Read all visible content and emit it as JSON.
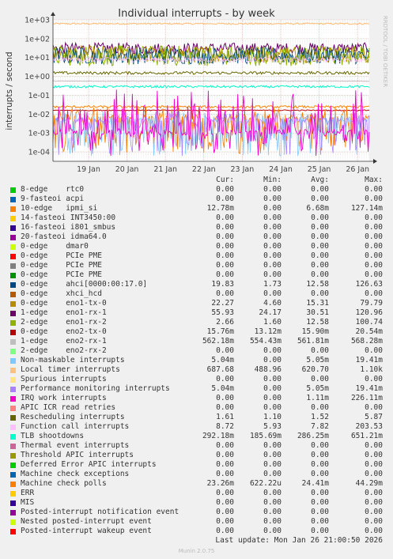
{
  "title": "Individual interrupts - by week",
  "watermark": "RRDTOOL / TOBI OETIKER",
  "footer": {
    "last_update": "Last update: Mon Jan 26 21:00:50 2026",
    "version": "Munin 2.0.75"
  },
  "legend_headers": {
    "cur": "Cur:",
    "min": "Min:",
    "avg": "Avg:",
    "max": "Max:"
  },
  "chart_data": {
    "type": "line",
    "title": "Individual interrupts - by week",
    "ylabel": "interrupts / second",
    "yscale": "log",
    "ylim": [
      5e-05,
      2000
    ],
    "y_ticks": [
      "1e+03",
      "1e+02",
      "1e+01",
      "1e+00",
      "1e-01",
      "1e-02",
      "1e-03",
      "1e-04"
    ],
    "x_ticks": [
      "19 Jan",
      "20 Jan",
      "21 Jan",
      "22 Jan",
      "23 Jan",
      "24 Jan",
      "25 Jan",
      "26 Jan"
    ],
    "grid": true,
    "legend_placement": "below",
    "series": [
      {
        "name": "8-edge",
        "device": "rtc0",
        "color": "#00cc00",
        "cur": "0.00",
        "min": "0.00",
        "avg": "0.00",
        "max": "0.00"
      },
      {
        "name": "9-fasteoi",
        "device": "acpi",
        "color": "#0066b3",
        "cur": "0.00",
        "min": "0.00",
        "avg": "0.00",
        "max": "0.00"
      },
      {
        "name": "10-edge",
        "device": "ipmi_si",
        "color": "#ff8000",
        "cur": "12.78m",
        "min": "0.00",
        "avg": "6.68m",
        "max": "127.14m"
      },
      {
        "name": "14-fasteoi",
        "device": "INT3450:00",
        "color": "#ffcc00",
        "cur": "0.00",
        "min": "0.00",
        "avg": "0.00",
        "max": "0.00"
      },
      {
        "name": "16-fasteoi",
        "device": "i801_smbus",
        "color": "#330099",
        "cur": "0.00",
        "min": "0.00",
        "avg": "0.00",
        "max": "0.00"
      },
      {
        "name": "20-fasteoi",
        "device": "idma64.0",
        "color": "#990099",
        "cur": "0.00",
        "min": "0.00",
        "avg": "0.00",
        "max": "0.00"
      },
      {
        "name": "0-edge",
        "device": "dmar0",
        "color": "#ccff00",
        "cur": "0.00",
        "min": "0.00",
        "avg": "0.00",
        "max": "0.00"
      },
      {
        "name": "0-edge",
        "device": "PCIe PME",
        "color": "#ff0000",
        "cur": "0.00",
        "min": "0.00",
        "avg": "0.00",
        "max": "0.00"
      },
      {
        "name": "0-edge",
        "device": "PCIe PME",
        "color": "#808080",
        "cur": "0.00",
        "min": "0.00",
        "avg": "0.00",
        "max": "0.00"
      },
      {
        "name": "0-edge",
        "device": "PCIe PME",
        "color": "#008f00",
        "cur": "0.00",
        "min": "0.00",
        "avg": "0.00",
        "max": "0.00"
      },
      {
        "name": "0-edge",
        "device": "ahci[0000:00:17.0]",
        "color": "#00487d",
        "cur": "19.83",
        "min": "1.73",
        "avg": "12.58",
        "max": "126.63"
      },
      {
        "name": "0-edge",
        "device": "xhci_hcd",
        "color": "#b35a00",
        "cur": "0.00",
        "min": "0.00",
        "avg": "0.00",
        "max": "0.00"
      },
      {
        "name": "0-edge",
        "device": "eno1-tx-0",
        "color": "#b38f00",
        "cur": "22.27",
        "min": "4.60",
        "avg": "15.31",
        "max": "79.79"
      },
      {
        "name": "1-edge",
        "device": "eno1-rx-1",
        "color": "#6b006b",
        "cur": "55.93",
        "min": "24.17",
        "avg": "30.51",
        "max": "120.96"
      },
      {
        "name": "2-edge",
        "device": "eno1-rx-2",
        "color": "#8fb300",
        "cur": "2.66",
        "min": "1.60",
        "avg": "12.58",
        "max": "100.74"
      },
      {
        "name": "0-edge",
        "device": "eno2-tx-0",
        "color": "#b30000",
        "cur": "15.76m",
        "min": "13.12m",
        "avg": "15.90m",
        "max": "20.54m"
      },
      {
        "name": "1-edge",
        "device": "eno2-rx-1",
        "color": "#bebebe",
        "cur": "562.18m",
        "min": "554.43m",
        "avg": "561.81m",
        "max": "568.28m"
      },
      {
        "name": "2-edge",
        "device": "eno2-rx-2",
        "color": "#80ff80",
        "cur": "0.00",
        "min": "0.00",
        "avg": "0.00",
        "max": "0.00"
      },
      {
        "name": "Non-maskable interrupts",
        "device": "",
        "color": "#80c9ff",
        "cur": "5.04m",
        "min": "0.00",
        "avg": "5.05m",
        "max": "19.41m"
      },
      {
        "name": "Local timer interrupts",
        "device": "",
        "color": "#ffc080",
        "cur": "687.68",
        "min": "488.96",
        "avg": "620.70",
        "max": "1.10k"
      },
      {
        "name": "Spurious interrupts",
        "device": "",
        "color": "#ffe680",
        "cur": "0.00",
        "min": "0.00",
        "avg": "0.00",
        "max": "0.00"
      },
      {
        "name": "Performance monitoring interrupts",
        "device": "",
        "color": "#aa80ff",
        "cur": "5.04m",
        "min": "0.00",
        "avg": "5.05m",
        "max": "19.41m"
      },
      {
        "name": "IRQ work interrupts",
        "device": "",
        "color": "#ee00cc",
        "cur": "0.00",
        "min": "0.00",
        "avg": "1.11m",
        "max": "226.11m"
      },
      {
        "name": "APIC ICR read retries",
        "device": "",
        "color": "#ff8080",
        "cur": "0.00",
        "min": "0.00",
        "avg": "0.00",
        "max": "0.00"
      },
      {
        "name": "Rescheduling interrupts",
        "device": "",
        "color": "#666600",
        "cur": "1.61",
        "min": "1.10",
        "avg": "1.52",
        "max": "5.87"
      },
      {
        "name": "Function call interrupts",
        "device": "",
        "color": "#ffbfff",
        "cur": "8.72",
        "min": "5.93",
        "avg": "7.82",
        "max": "203.53"
      },
      {
        "name": "TLB shootdowns",
        "device": "",
        "color": "#00ffcc",
        "cur": "292.18m",
        "min": "185.69m",
        "avg": "286.25m",
        "max": "651.21m"
      },
      {
        "name": "Thermal event interrupts",
        "device": "",
        "color": "#cc6699",
        "cur": "0.00",
        "min": "0.00",
        "avg": "0.00",
        "max": "0.00"
      },
      {
        "name": "Threshold APIC interrupts",
        "device": "",
        "color": "#999900",
        "cur": "0.00",
        "min": "0.00",
        "avg": "0.00",
        "max": "0.00"
      },
      {
        "name": "Deferred Error APIC interrupts",
        "device": "",
        "color": "#00cc00",
        "cur": "0.00",
        "min": "0.00",
        "avg": "0.00",
        "max": "0.00"
      },
      {
        "name": "Machine check exceptions",
        "device": "",
        "color": "#0066b3",
        "cur": "0.00",
        "min": "0.00",
        "avg": "0.00",
        "max": "0.00"
      },
      {
        "name": "Machine check polls",
        "device": "",
        "color": "#ff8000",
        "cur": "23.26m",
        "min": "622.22u",
        "avg": "24.41m",
        "max": "44.29m"
      },
      {
        "name": "ERR",
        "device": "",
        "color": "#ffcc00",
        "cur": "0.00",
        "min": "0.00",
        "avg": "0.00",
        "max": "0.00"
      },
      {
        "name": "MIS",
        "device": "",
        "color": "#330099",
        "cur": "0.00",
        "min": "0.00",
        "avg": "0.00",
        "max": "0.00"
      },
      {
        "name": "Posted-interrupt notification event",
        "device": "",
        "color": "#990099",
        "cur": "0.00",
        "min": "0.00",
        "avg": "0.00",
        "max": "0.00"
      },
      {
        "name": "Nested posted-interrupt event",
        "device": "",
        "color": "#ccff00",
        "cur": "0.00",
        "min": "0.00",
        "avg": "0.00",
        "max": "0.00"
      },
      {
        "name": "Posted-interrupt wakeup event",
        "device": "",
        "color": "#ff0000",
        "cur": "0.00",
        "min": "0.00",
        "avg": "0.00",
        "max": "0.00"
      }
    ]
  }
}
